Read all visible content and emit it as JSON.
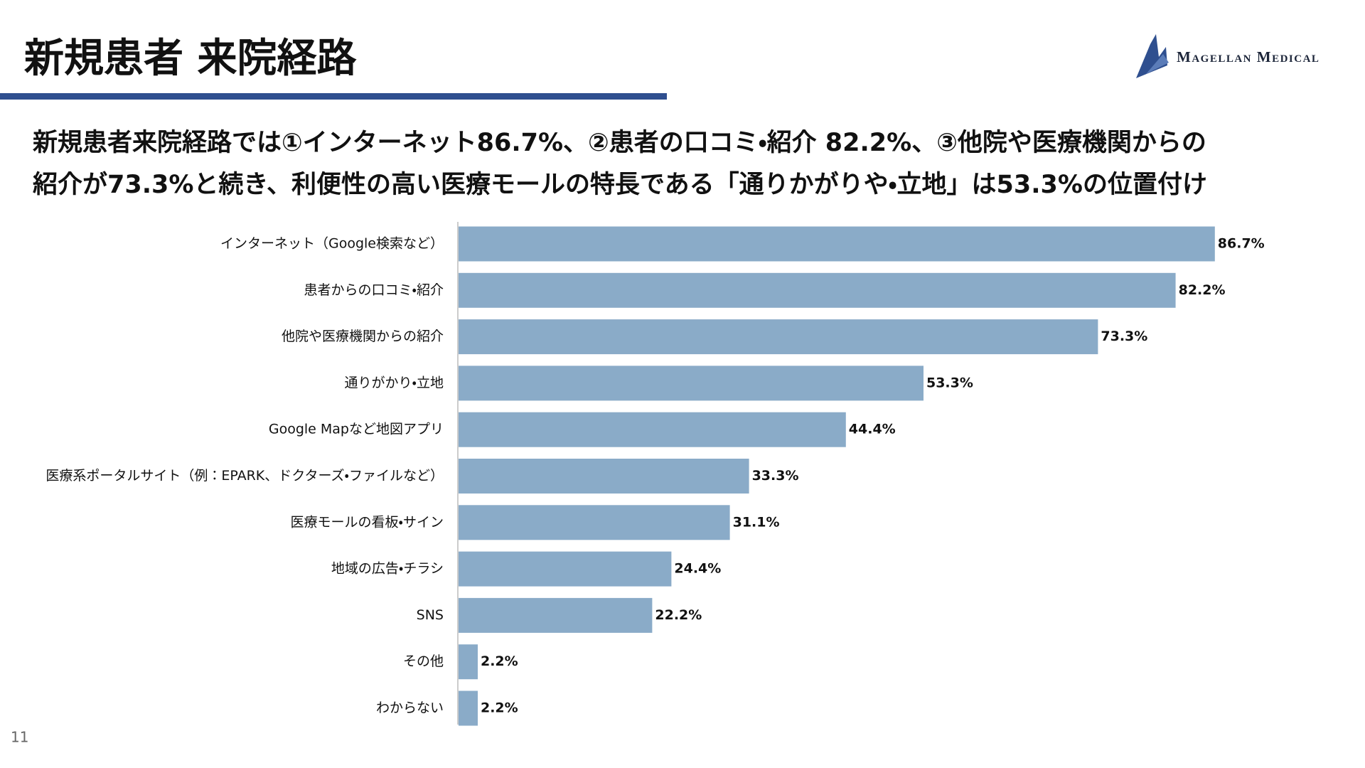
{
  "slide": {
    "title": "新規患者 来院経路",
    "summary": [
      "新規患者来院経路では①インターネット86.7%、②患者の口コミ・紹介 82.2%、③他院や医療機関からの",
      "紹介が73.3%と続き、利便性の高い医療モールの特長である「通りかがりや・立地」は53.3%の位置付け"
    ],
    "logo": "Magellan Medical",
    "page_number": "11"
  },
  "chart_data": {
    "type": "bar",
    "orientation": "horizontal",
    "categories": [
      "インターネット（Google検索など）",
      "患者からの口コミ・紹介",
      "他院や医療機関からの紹介",
      "通りがかり・立地",
      "Google Mapなど地図アプリ",
      "医療系ポータルサイト（例：EPARK、ドクターズ・ファイルなど）",
      "医療モールの看板・サイン",
      "地域の広告・チラシ",
      "SNS",
      "その他",
      "わからない"
    ],
    "values": [
      86.7,
      82.2,
      73.3,
      53.3,
      44.4,
      33.3,
      31.1,
      24.4,
      22.2,
      2.2,
      2.2
    ],
    "value_labels": [
      "86.7%",
      "82.2%",
      "73.3%",
      "53.3%",
      "44.4%",
      "33.3%",
      "31.1%",
      "24.4%",
      "22.2%",
      "2.2%",
      "2.2%"
    ],
    "color": "#8aabc8",
    "xlim": [
      0,
      100
    ]
  }
}
